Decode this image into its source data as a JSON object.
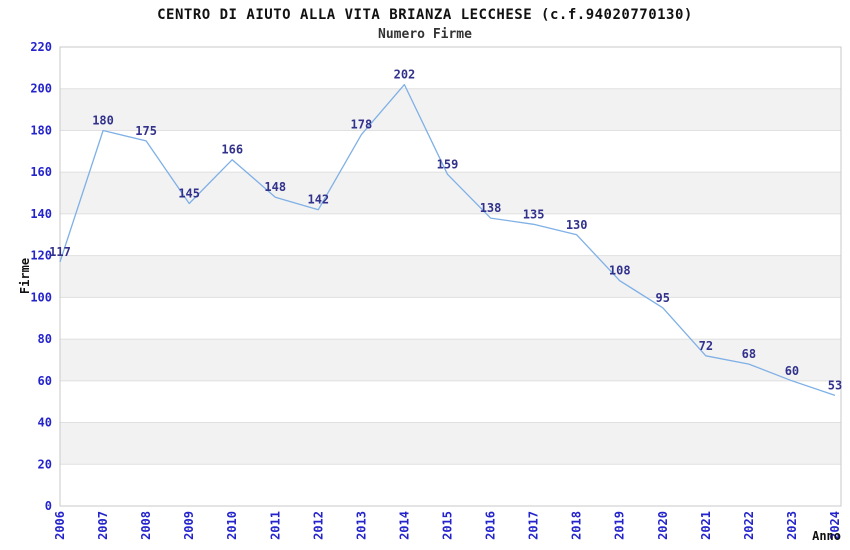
{
  "chart_data": {
    "type": "line",
    "title": "CENTRO DI AIUTO ALLA VITA BRIANZA LECCHESE (c.f.94020770130)",
    "subtitle": "Numero Firme",
    "xlabel": "Anno",
    "ylabel": "Firme",
    "categories": [
      "2006",
      "2007",
      "2008",
      "2009",
      "2010",
      "2011",
      "2012",
      "2013",
      "2014",
      "2015",
      "2016",
      "2017",
      "2018",
      "2019",
      "2020",
      "2021",
      "2022",
      "2023",
      "2024"
    ],
    "values": [
      117,
      180,
      175,
      145,
      166,
      148,
      142,
      178,
      202,
      159,
      138,
      135,
      130,
      108,
      95,
      72,
      68,
      60,
      53
    ],
    "ylim": [
      0,
      220
    ],
    "ytick_step": 20,
    "grid": "horizontal-bands-alternating",
    "legend": "none",
    "data_labels_shown": true,
    "colors": {
      "line": "#7fb0e6",
      "data_label": "#32328c",
      "tick_label": "#2424cc",
      "band_fill": "#f2f2f2",
      "gridline": "#e0e0e0",
      "plot_border": "#c9c9c9",
      "title": "#111111",
      "subtitle": "#333333",
      "axis_title": "#111111",
      "background": "#ffffff"
    }
  }
}
